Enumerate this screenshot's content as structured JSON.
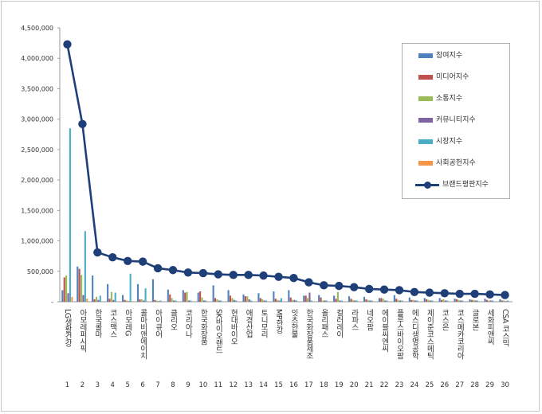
{
  "chart_data": {
    "type": "bar",
    "ylim": [
      0,
      4500000
    ],
    "y_ticks": [
      0,
      500000,
      1000000,
      1500000,
      2000000,
      2500000,
      3000000,
      3500000,
      4000000,
      4500000
    ],
    "y_tick_labels": [
      "-",
      "500,000",
      "1,000,000",
      "1,500,000",
      "2,000,000",
      "2,500,000",
      "3,000,000",
      "3,500,000",
      "4,000,000",
      "4,500,000"
    ],
    "grid": false,
    "legend_position": "right",
    "categories": [
      "LG생활건강",
      "아모레퍼시픽",
      "한국콜마",
      "코스맥스",
      "아모레G",
      "콜마비앤에이치",
      "아이큐어",
      "클리오",
      "코리아나",
      "한국화장품",
      "SK바이오랜드",
      "현대바이오",
      "애경산업",
      "토니모리",
      "MP한강",
      "잇츠한불",
      "한국화장품제조",
      "올리패스",
      "컬러레이",
      "라파스",
      "네오팜",
      "에이블씨엔씨",
      "플루스바이오팜",
      "에스디생명공학",
      "제이준코스메틱",
      "코스온",
      "코스메카코리아",
      "글로본",
      "세화피앤씨",
      "CSA 코스믹"
    ],
    "ranks": [
      "1",
      "2",
      "3",
      "4",
      "5",
      "6",
      "7",
      "8",
      "9",
      "10",
      "11",
      "12",
      "13",
      "14",
      "15",
      "16",
      "17",
      "18",
      "19",
      "20",
      "21",
      "22",
      "23",
      "24",
      "25",
      "26",
      "27",
      "28",
      "29",
      "30"
    ],
    "series": [
      {
        "name": "참여지수",
        "color": "#4f81bd",
        "values": [
          190000,
          580000,
          430000,
          290000,
          110000,
          290000,
          370000,
          200000,
          190000,
          150000,
          270000,
          190000,
          120000,
          140000,
          170000,
          190000,
          100000,
          110000,
          100000,
          90000,
          80000,
          60000,
          110000,
          70000,
          60000,
          60000,
          50000,
          40000,
          50000,
          40000
        ]
      },
      {
        "name": "미디어지수",
        "color": "#c0504d",
        "values": [
          400000,
          540000,
          40000,
          50000,
          30000,
          40000,
          30000,
          120000,
          150000,
          170000,
          60000,
          100000,
          90000,
          60000,
          50000,
          70000,
          100000,
          70000,
          50000,
          50000,
          40000,
          60000,
          50000,
          30000,
          40000,
          30000,
          40000,
          30000,
          30000,
          20000
        ]
      },
      {
        "name": "소통지수",
        "color": "#9bbb59",
        "values": [
          430000,
          440000,
          80000,
          160000,
          20000,
          40000,
          20000,
          60000,
          160000,
          70000,
          40000,
          60000,
          90000,
          40000,
          30000,
          30000,
          60000,
          20000,
          160000,
          30000,
          30000,
          50000,
          30000,
          30000,
          30000,
          40000,
          30000,
          30000,
          20000,
          20000
        ]
      },
      {
        "name": "커뮤니티지수",
        "color": "#8064a2",
        "values": [
          140000,
          110000,
          30000,
          30000,
          10000,
          20000,
          10000,
          20000,
          20000,
          20000,
          20000,
          30000,
          40000,
          20000,
          20000,
          30000,
          150000,
          20000,
          20000,
          20000,
          20000,
          20000,
          20000,
          20000,
          20000,
          20000,
          20000,
          20000,
          20000,
          10000
        ]
      },
      {
        "name": "시장지수",
        "color": "#4bacc6",
        "values": [
          2850000,
          1160000,
          100000,
          150000,
          460000,
          220000,
          20000,
          20000,
          20000,
          20000,
          20000,
          20000,
          20000,
          20000,
          60000,
          20000,
          20000,
          20000,
          20000,
          20000,
          20000,
          20000,
          20000,
          20000,
          20000,
          20000,
          20000,
          20000,
          20000,
          20000
        ]
      },
      {
        "name": "사회공헌지수",
        "color": "#f79646",
        "values": [
          80000,
          50000,
          0,
          0,
          10000,
          0,
          0,
          0,
          0,
          0,
          0,
          0,
          0,
          0,
          0,
          0,
          0,
          0,
          0,
          0,
          0,
          0,
          0,
          0,
          0,
          0,
          0,
          0,
          0,
          0
        ]
      },
      {
        "name": "브랜드평판지수",
        "color": "#1f3f78",
        "type": "line",
        "values": [
          4230000,
          2920000,
          810000,
          730000,
          670000,
          660000,
          550000,
          520000,
          480000,
          470000,
          450000,
          440000,
          440000,
          430000,
          410000,
          390000,
          320000,
          270000,
          260000,
          240000,
          210000,
          200000,
          190000,
          160000,
          150000,
          140000,
          130000,
          130000,
          120000,
          110000
        ]
      }
    ]
  },
  "legend": {
    "items": [
      {
        "label": "참여지수",
        "color": "#4f81bd",
        "kind": "bar"
      },
      {
        "label": "미디어지수",
        "color": "#c0504d",
        "kind": "bar"
      },
      {
        "label": "소통지수",
        "color": "#9bbb59",
        "kind": "bar"
      },
      {
        "label": "커뮤니티지수",
        "color": "#8064a2",
        "kind": "bar"
      },
      {
        "label": "시장지수",
        "color": "#4bacc6",
        "kind": "bar"
      },
      {
        "label": "사회공헌지수",
        "color": "#f79646",
        "kind": "bar"
      },
      {
        "label": "브랜드평판지수",
        "color": "#1f3f78",
        "kind": "line"
      }
    ]
  }
}
